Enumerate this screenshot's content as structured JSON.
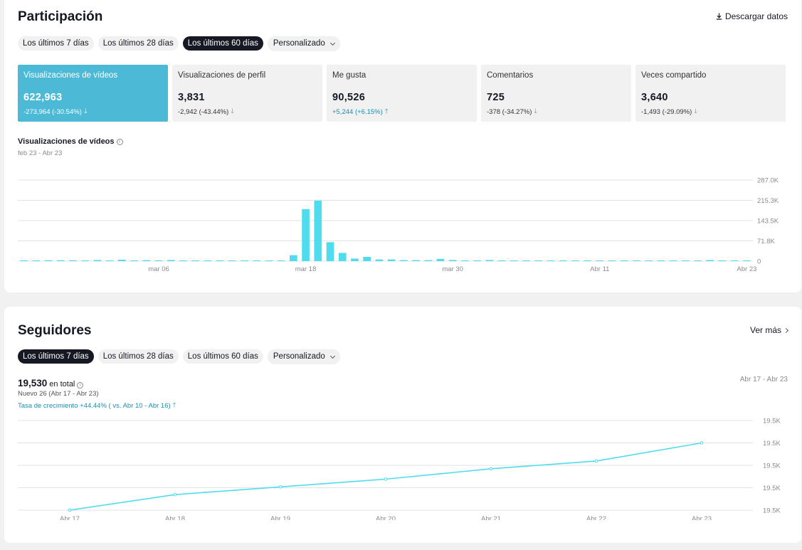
{
  "engagement": {
    "title": "Participación",
    "download_label": "Descargar datos",
    "download_icon": "download-icon",
    "ranges": [
      "Los últimos 7 días",
      "Los últimos 28 días",
      "Los últimos 60 días"
    ],
    "active_range": 2,
    "custom_label": "Personalizado",
    "metrics": [
      {
        "label": "Visualizaciones de vídeos",
        "value": "622,963",
        "change": "-273,964 (-30.54%)",
        "direction": "down"
      },
      {
        "label": "Visualizaciones de perfil",
        "value": "3,831",
        "change": "-2,942 (-43.44%)",
        "direction": "down"
      },
      {
        "label": "Me gusta",
        "value": "90,526",
        "change": "+5,244 (+6.15%)",
        "direction": "up"
      },
      {
        "label": "Comentarios",
        "value": "725",
        "change": "-378 (-34.27%)",
        "direction": "down"
      },
      {
        "label": "Veces compartido",
        "value": "3,640",
        "change": "-1,493 (-29.09%)",
        "direction": "down"
      }
    ],
    "chart_title": "Visualizaciones de vídeos",
    "chart_range": "feb 23 - Abr 23"
  },
  "followers": {
    "title": "Seguidores",
    "see_more_label": "Ver más",
    "ranges": [
      "Los últimos 7 días",
      "Los últimos 28 días",
      "Los últimos 60 días"
    ],
    "active_range": 0,
    "custom_label": "Personalizado",
    "total_value": "19,530",
    "total_label": "en total",
    "nuevo_text": "Nuevo 26 (Abr 17 - Abr 23)",
    "growth_text": "Tasa de crecimiento +44.44% ( vs. Abr 10 - Abr 16)",
    "range_label": "Abr 17 - Abr 23"
  },
  "chart_data": [
    {
      "type": "bar",
      "title": "Visualizaciones de vídeos",
      "subtitle": "feb 23 - Abr 23",
      "x_tick_labels": [
        "mar 06",
        "mar 18",
        "mar 30",
        "Abr 11",
        "Abr 23"
      ],
      "x_tick_index": [
        11,
        23,
        35,
        47,
        59
      ],
      "y_tick_labels": [
        "287.0K",
        "215.3K",
        "143.5K",
        "71.8K",
        "0"
      ],
      "ylim": [
        0,
        287000
      ],
      "grid": true,
      "color": "#4fdcef",
      "values": [
        2500,
        2500,
        3000,
        3000,
        3000,
        2500,
        4000,
        2500,
        5000,
        2500,
        3500,
        1500,
        4000,
        1500,
        1500,
        2000,
        1500,
        1500,
        1500,
        1500,
        1500,
        1500,
        21000,
        184000,
        214000,
        67000,
        29000,
        9000,
        15000,
        6000,
        6000,
        3500,
        3500,
        3500,
        8000,
        4000,
        1000,
        1000,
        4000,
        500,
        500,
        500,
        1000,
        1000,
        500,
        1000,
        1000,
        1000,
        500,
        500,
        500,
        500,
        500,
        500,
        500,
        500,
        4000,
        500,
        500,
        500
      ]
    },
    {
      "type": "line",
      "x": [
        "Abr 17",
        "Abr 18",
        "Abr 19",
        "Abr 20",
        "Abr 21",
        "Abr 22",
        "Abr 23"
      ],
      "values": [
        19504,
        19510,
        19513,
        19516,
        19520,
        19523,
        19530
      ],
      "y_tick_labels": [
        "19.5K",
        "19.5K",
        "19.5K",
        "19.5K",
        "19.5K"
      ],
      "ylim": [
        19504,
        19530
      ],
      "grid": true,
      "color": "#4fdcef"
    }
  ]
}
